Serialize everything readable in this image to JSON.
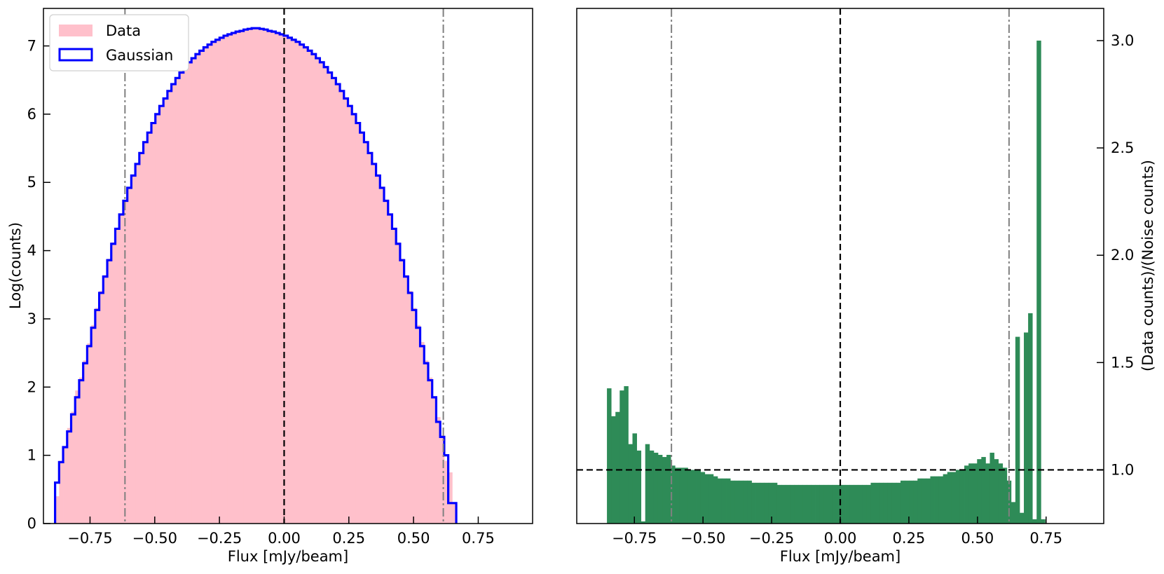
{
  "chart_data": [
    {
      "type": "histogram",
      "xlabel": "Flux [mJy/beam]",
      "ylabel": "Log(counts)",
      "xlim": [
        -0.93,
        0.96
      ],
      "ylim": [
        0,
        7.55
      ],
      "xticks": [
        -0.75,
        -0.5,
        -0.25,
        0.0,
        0.25,
        0.5,
        0.75
      ],
      "xtick_labels": [
        "−0.75",
        "−0.50",
        "−0.25",
        "0.00",
        "0.25",
        "0.50",
        "0.75"
      ],
      "yticks": [
        0,
        1,
        2,
        3,
        4,
        5,
        6,
        7
      ],
      "ytick_labels": [
        "0",
        "1",
        "2",
        "3",
        "4",
        "5",
        "6",
        "7"
      ],
      "legend": {
        "placement": "top-left",
        "entries": [
          "Data",
          "Gaussian"
        ]
      },
      "vlines": [
        {
          "x": 0.0,
          "style": "dashed",
          "color": "#000000"
        },
        {
          "x": -0.615,
          "style": "dashdot",
          "color": "#808080"
        },
        {
          "x": 0.615,
          "style": "dashdot",
          "color": "#808080"
        }
      ],
      "series": [
        {
          "name": "Data",
          "style": "filled-bars",
          "color": "#ffc0cb",
          "bin_start": -0.885,
          "bin_width": 0.0155,
          "values": [
            0.4,
            0.92,
            1.12,
            1.4,
            1.64,
            1.95,
            2.14,
            2.39,
            2.64,
            2.91,
            3.16,
            3.41,
            3.64,
            3.88,
            4.12,
            4.33,
            4.54,
            4.74,
            4.93,
            5.11,
            5.28,
            5.44,
            5.59,
            5.74,
            5.87,
            6.0,
            6.12,
            6.24,
            6.34,
            6.44,
            6.53,
            6.61,
            6.69,
            6.76,
            6.82,
            6.88,
            6.93,
            6.98,
            7.02,
            7.06,
            7.09,
            7.12,
            7.15,
            7.17,
            7.19,
            7.21,
            7.22,
            7.23,
            7.24,
            7.25,
            7.25,
            7.24,
            7.23,
            7.22,
            7.21,
            7.19,
            7.17,
            7.15,
            7.12,
            7.09,
            7.06,
            7.02,
            6.98,
            6.93,
            6.88,
            6.82,
            6.76,
            6.69,
            6.61,
            6.53,
            6.44,
            6.34,
            6.24,
            6.12,
            6.0,
            5.87,
            5.74,
            5.59,
            5.44,
            5.28,
            5.11,
            4.93,
            4.74,
            4.54,
            4.33,
            4.12,
            3.88,
            3.64,
            3.41,
            3.16,
            2.91,
            2.66,
            2.39,
            2.14,
            1.85,
            1.56,
            1.29,
            0.92,
            0.75,
            0.3
          ]
        },
        {
          "name": "Gaussian",
          "style": "step",
          "color": "#0000ff",
          "bin_start": -0.885,
          "bin_width": 0.0155,
          "values": [
            0.6,
            0.9,
            1.12,
            1.35,
            1.6,
            1.85,
            2.1,
            2.35,
            2.6,
            2.87,
            3.13,
            3.38,
            3.62,
            3.86,
            4.1,
            4.32,
            4.53,
            4.73,
            4.92,
            5.1,
            5.27,
            5.43,
            5.59,
            5.73,
            5.87,
            6.0,
            6.12,
            6.23,
            6.34,
            6.44,
            6.53,
            6.61,
            6.69,
            6.76,
            6.82,
            6.88,
            6.93,
            6.98,
            7.02,
            7.06,
            7.09,
            7.12,
            7.15,
            7.17,
            7.19,
            7.21,
            7.22,
            7.24,
            7.25,
            7.26,
            7.26,
            7.25,
            7.24,
            7.22,
            7.21,
            7.19,
            7.17,
            7.15,
            7.12,
            7.09,
            7.06,
            7.02,
            6.98,
            6.93,
            6.88,
            6.82,
            6.76,
            6.69,
            6.61,
            6.53,
            6.44,
            6.34,
            6.23,
            6.12,
            6.0,
            5.87,
            5.73,
            5.59,
            5.43,
            5.27,
            5.1,
            4.92,
            4.73,
            4.53,
            4.32,
            4.1,
            3.86,
            3.62,
            3.38,
            3.13,
            2.87,
            2.6,
            2.35,
            2.1,
            1.85,
            1.49,
            1.27,
            1.0,
            0.3,
            0.3
          ]
        }
      ]
    },
    {
      "type": "bar",
      "xlabel": "Flux [mJy/beam]",
      "ylabel": "(Data counts)/(Noise counts)",
      "y_axis_side": "right",
      "xlim": [
        -0.96,
        0.96
      ],
      "ylim": [
        0.75,
        3.15
      ],
      "xticks": [
        -0.75,
        -0.5,
        -0.25,
        0.0,
        0.25,
        0.5,
        0.75
      ],
      "xtick_labels": [
        "−0.75",
        "−0.50",
        "−0.25",
        "0.00",
        "0.25",
        "0.50",
        "0.75"
      ],
      "yticks": [
        1.0,
        1.5,
        2.0,
        2.5,
        3.0
      ],
      "ytick_labels": [
        "1.0",
        "1.5",
        "2.0",
        "2.5",
        "3.0"
      ],
      "hlines": [
        {
          "y": 1.0,
          "style": "dashed",
          "color": "#000000"
        }
      ],
      "vlines": [
        {
          "x": 0.0,
          "style": "dashed",
          "color": "#000000"
        },
        {
          "x": -0.615,
          "style": "dashdot",
          "color": "#808080"
        },
        {
          "x": 0.615,
          "style": "dashdot",
          "color": "#808080"
        }
      ],
      "series": [
        {
          "name": "",
          "color": "#2e8b57",
          "bin_start": -0.85,
          "bin_width": 0.0155,
          "values": [
            1.38,
            1.25,
            1.27,
            1.37,
            1.39,
            1.12,
            1.17,
            1.09,
            0.76,
            1.12,
            1.09,
            1.08,
            1.07,
            1.06,
            1.07,
            1.02,
            1.01,
            1.01,
            1.01,
            1.0,
            1.0,
            1.0,
            0.99,
            0.98,
            0.98,
            0.97,
            0.96,
            0.96,
            0.96,
            0.95,
            0.95,
            0.95,
            0.95,
            0.95,
            0.94,
            0.94,
            0.94,
            0.94,
            0.94,
            0.94,
            0.93,
            0.93,
            0.93,
            0.93,
            0.93,
            0.93,
            0.93,
            0.93,
            0.93,
            0.93,
            0.93,
            0.93,
            0.93,
            0.93,
            0.93,
            0.93,
            0.93,
            0.93,
            0.93,
            0.93,
            0.93,
            0.93,
            0.94,
            0.94,
            0.94,
            0.94,
            0.94,
            0.94,
            0.94,
            0.95,
            0.95,
            0.95,
            0.95,
            0.96,
            0.96,
            0.96,
            0.97,
            0.97,
            0.97,
            0.98,
            0.99,
            0.99,
            1.0,
            1.0,
            1.02,
            1.03,
            1.03,
            1.05,
            1.06,
            1.03,
            1.08,
            1.05,
            1.03,
            1.01,
            0.95,
            0.85,
            1.62,
            0.8,
            1.64,
            1.73,
            0.77,
            3.0,
            0.77
          ]
        }
      ]
    }
  ]
}
